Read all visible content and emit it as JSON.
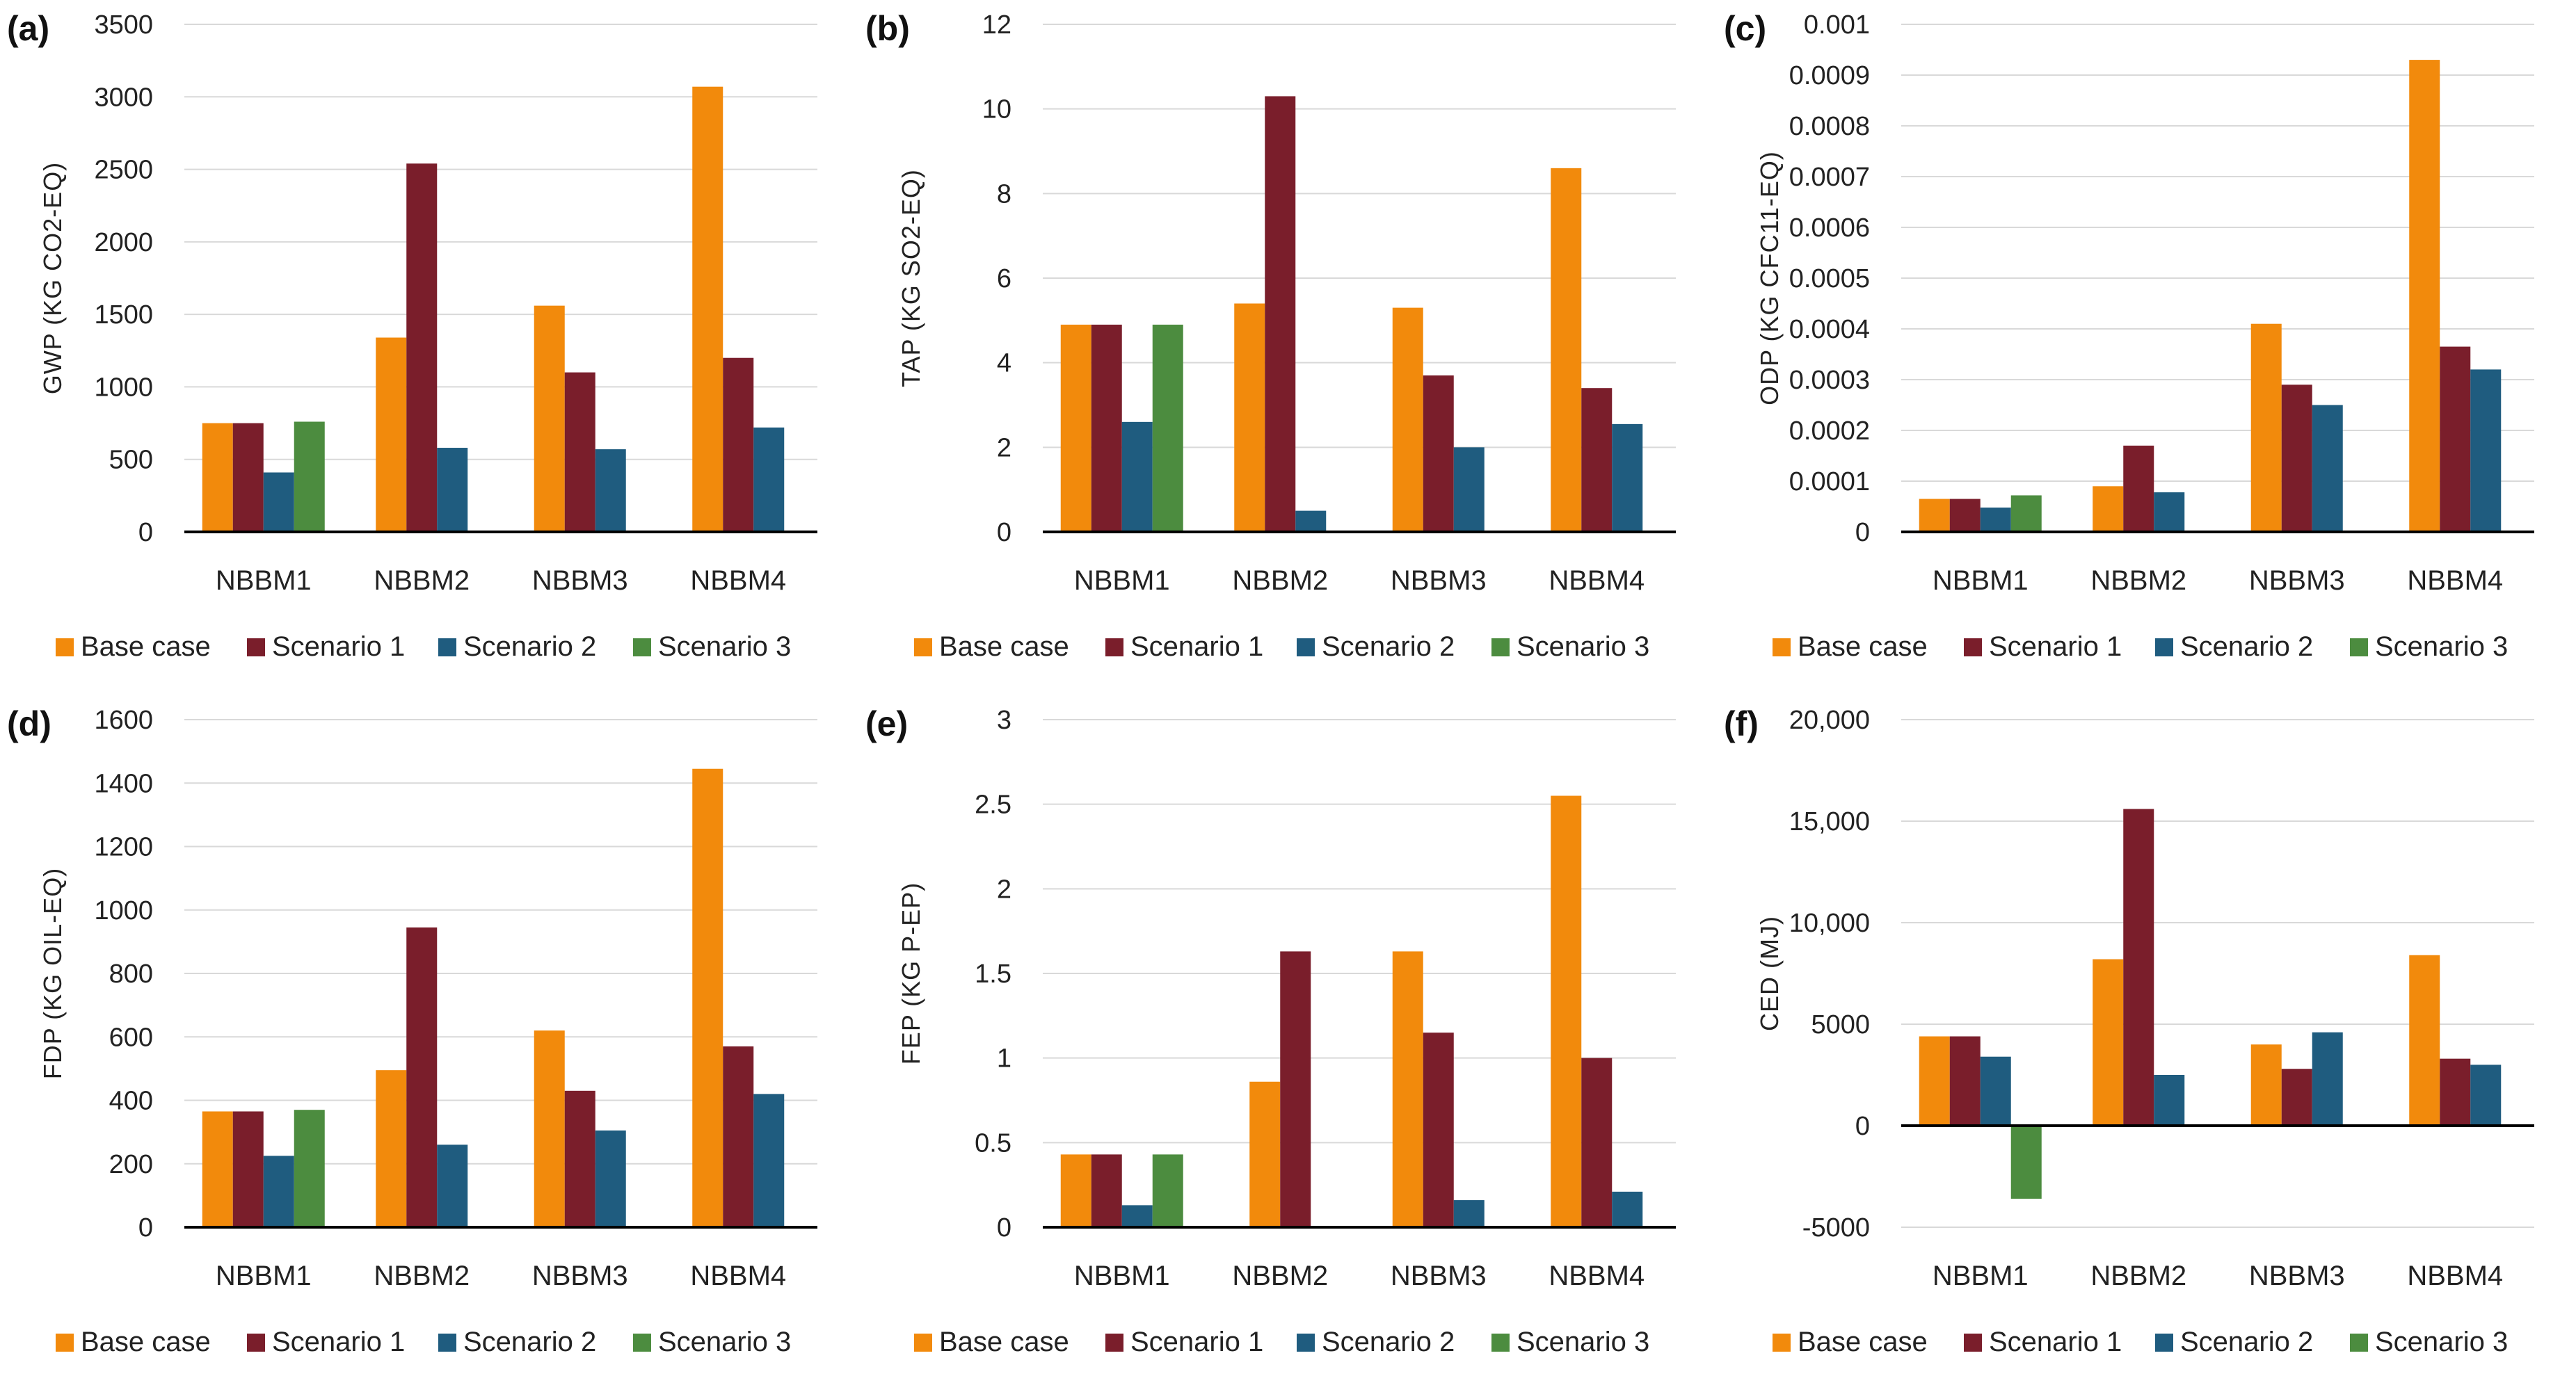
{
  "legend": {
    "entries": [
      "Base case",
      "Scenario 1",
      "Scenario 2",
      "Scenario 3"
    ],
    "colors": [
      "#F28A0C",
      "#7A1E2B",
      "#1F5C7F",
      "#4C8C3F"
    ]
  },
  "chart_data": [
    {
      "panel": "(a)",
      "type": "bar",
      "ylabel": "GWP (KG CO2-EQ)",
      "ylim": [
        0,
        3500
      ],
      "yticks": [
        0,
        500,
        1000,
        1500,
        2000,
        2500,
        3000,
        3500
      ],
      "ytick_labels": [
        "0",
        "500",
        "1000",
        "1500",
        "2000",
        "2500",
        "3000",
        "3500"
      ],
      "categories": [
        "NBBM1",
        "NBBM2",
        "NBBM3",
        "NBBM4"
      ],
      "series": [
        {
          "name": "Base case",
          "values": [
            750,
            1340,
            1560,
            3070
          ]
        },
        {
          "name": "Scenario 1",
          "values": [
            750,
            2540,
            1100,
            1200
          ]
        },
        {
          "name": "Scenario 2",
          "values": [
            410,
            580,
            570,
            720
          ]
        },
        {
          "name": "Scenario 3",
          "values": [
            760,
            null,
            null,
            null
          ]
        }
      ]
    },
    {
      "panel": "(b)",
      "type": "bar",
      "ylabel": "TAP (KG SO2-EQ)",
      "ylim": [
        0,
        12
      ],
      "yticks": [
        0,
        2,
        4,
        6,
        8,
        10,
        12
      ],
      "ytick_labels": [
        "0",
        "2",
        "4",
        "6",
        "8",
        "10",
        "12"
      ],
      "categories": [
        "NBBM1",
        "NBBM2",
        "NBBM3",
        "NBBM4"
      ],
      "series": [
        {
          "name": "Base case",
          "values": [
            4.9,
            5.4,
            5.3,
            8.6
          ]
        },
        {
          "name": "Scenario 1",
          "values": [
            4.9,
            10.3,
            3.7,
            3.4
          ]
        },
        {
          "name": "Scenario 2",
          "values": [
            2.6,
            0.5,
            2.0,
            2.55
          ]
        },
        {
          "name": "Scenario 3",
          "values": [
            4.9,
            null,
            null,
            null
          ]
        }
      ]
    },
    {
      "panel": "(c)",
      "type": "bar",
      "ylabel": "ODP (KG CFC11-EQ)",
      "ylim": [
        0,
        0.001
      ],
      "yticks": [
        0,
        0.0001,
        0.0002,
        0.0003,
        0.0004,
        0.0005,
        0.0006,
        0.0007,
        0.0008,
        0.0009,
        0.001
      ],
      "ytick_labels": [
        "0",
        "0.0001",
        "0.0002",
        "0.0003",
        "0.0004",
        "0.0005",
        "0.0006",
        "0.0007",
        "0.0008",
        "0.0009",
        "0.001"
      ],
      "categories": [
        "NBBM1",
        "NBBM2",
        "NBBM3",
        "NBBM4"
      ],
      "series": [
        {
          "name": "Base case",
          "values": [
            6.5e-05,
            9e-05,
            0.00041,
            0.00093
          ]
        },
        {
          "name": "Scenario 1",
          "values": [
            6.5e-05,
            0.00017,
            0.00029,
            0.000365
          ]
        },
        {
          "name": "Scenario 2",
          "values": [
            4.8e-05,
            7.8e-05,
            0.00025,
            0.00032
          ]
        },
        {
          "name": "Scenario 3",
          "values": [
            7.2e-05,
            null,
            null,
            null
          ]
        }
      ]
    },
    {
      "panel": "(d)",
      "type": "bar",
      "ylabel": "FDP (KG OIL-EQ)",
      "ylim": [
        0,
        1600
      ],
      "yticks": [
        0,
        200,
        400,
        600,
        800,
        1000,
        1200,
        1400,
        1600
      ],
      "ytick_labels": [
        "0",
        "200",
        "400",
        "600",
        "800",
        "1000",
        "1200",
        "1400",
        "1600"
      ],
      "categories": [
        "NBBM1",
        "NBBM2",
        "NBBM3",
        "NBBM4"
      ],
      "series": [
        {
          "name": "Base case",
          "values": [
            365,
            495,
            620,
            1445
          ]
        },
        {
          "name": "Scenario 1",
          "values": [
            365,
            945,
            430,
            570
          ]
        },
        {
          "name": "Scenario 2",
          "values": [
            225,
            260,
            305,
            420
          ]
        },
        {
          "name": "Scenario 3",
          "values": [
            370,
            null,
            null,
            null
          ]
        }
      ]
    },
    {
      "panel": "(e)",
      "type": "bar",
      "ylabel": "FEP (KG P-EP)",
      "ylim": [
        0,
        3
      ],
      "yticks": [
        0,
        0.5,
        1,
        1.5,
        2,
        2.5,
        3
      ],
      "ytick_labels": [
        "0",
        "0.5",
        "1",
        "1.5",
        "2",
        "2.5",
        "3"
      ],
      "categories": [
        "NBBM1",
        "NBBM2",
        "NBBM3",
        "NBBM4"
      ],
      "series": [
        {
          "name": "Base case",
          "values": [
            0.43,
            0.86,
            1.63,
            2.55
          ]
        },
        {
          "name": "Scenario 1",
          "values": [
            0.43,
            1.63,
            1.15,
            1.0
          ]
        },
        {
          "name": "Scenario 2",
          "values": [
            0.13,
            null,
            0.16,
            0.21
          ]
        },
        {
          "name": "Scenario 3",
          "values": [
            0.43,
            null,
            null,
            null
          ]
        }
      ]
    },
    {
      "panel": "(f)",
      "type": "bar",
      "ylabel": "CED (MJ)",
      "ylim": [
        -5000,
        20000
      ],
      "yticks": [
        -5000,
        0,
        5000,
        10000,
        15000,
        20000
      ],
      "ytick_labels": [
        "-5000",
        "0",
        "5000",
        "10,000",
        "15,000",
        "20,000"
      ],
      "categories": [
        "NBBM1",
        "NBBM2",
        "NBBM3",
        "NBBM4"
      ],
      "series": [
        {
          "name": "Base case",
          "values": [
            4400,
            8200,
            4000,
            8400
          ]
        },
        {
          "name": "Scenario 1",
          "values": [
            4400,
            15600,
            2800,
            3300
          ]
        },
        {
          "name": "Scenario 2",
          "values": [
            3400,
            2500,
            4600,
            3000
          ]
        },
        {
          "name": "Scenario 3",
          "values": [
            -3600,
            null,
            null,
            null
          ]
        }
      ]
    }
  ]
}
